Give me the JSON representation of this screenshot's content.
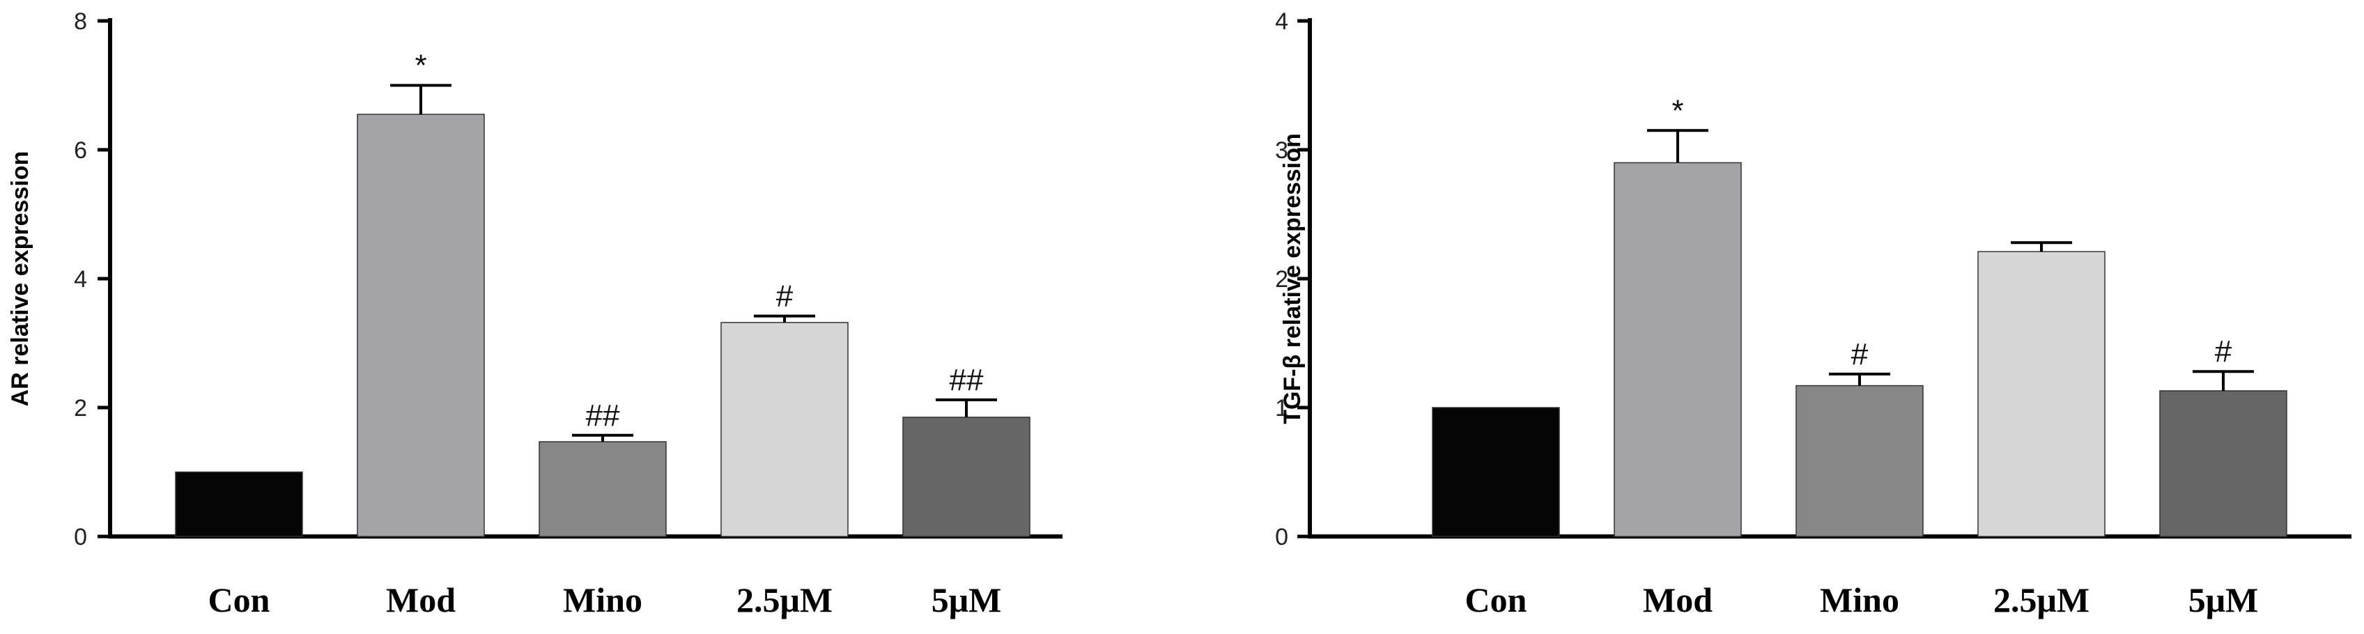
{
  "chart_data": [
    {
      "type": "bar",
      "ylabel": "AR relative expression",
      "ylim": [
        0,
        8
      ],
      "yticks": [
        0,
        2,
        4,
        6,
        8
      ],
      "categories": [
        "Con",
        "Mod",
        "Mino",
        "2.5μM",
        "5μM"
      ],
      "values": [
        1.0,
        6.55,
        1.47,
        3.32,
        1.85
      ],
      "errors": [
        0,
        0.45,
        0.1,
        0.1,
        0.27
      ],
      "annotations": [
        "",
        "*",
        "##",
        "#",
        "##"
      ],
      "colors": [
        "#050505",
        "#a3a3a8",
        "#878787",
        "#d6d6d6",
        "#666666"
      ],
      "grid": false
    },
    {
      "type": "bar",
      "ylabel": "TGF-β relative expression",
      "ylim": [
        0,
        4
      ],
      "yticks": [
        0,
        1,
        2,
        3,
        4
      ],
      "categories": [
        "Con",
        "Mod",
        "Mino",
        "2.5μM",
        "5μM"
      ],
      "values": [
        1.0,
        2.9,
        1.17,
        2.21,
        1.13
      ],
      "errors": [
        0,
        0.25,
        0.09,
        0.07,
        0.15
      ],
      "annotations": [
        "",
        "*",
        "#",
        "",
        "#"
      ],
      "colors": [
        "#050505",
        "#a3a3a8",
        "#878787",
        "#d6d6d6",
        "#666666"
      ],
      "grid": false
    }
  ]
}
